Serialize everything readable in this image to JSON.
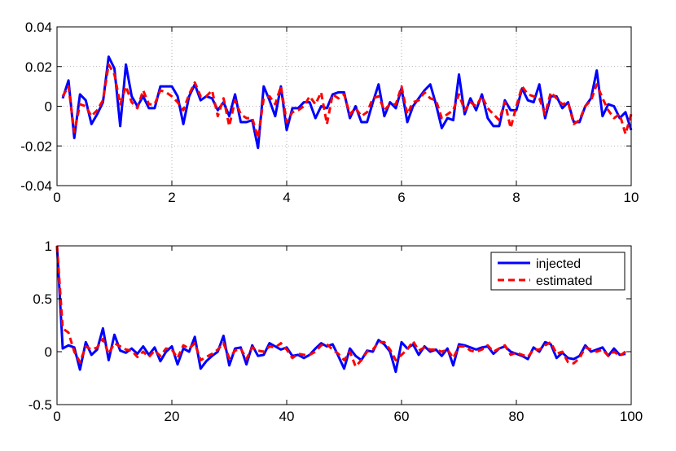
{
  "chart_data": [
    {
      "type": "line",
      "xlim": [
        0,
        10
      ],
      "ylim": [
        -0.04,
        0.04
      ],
      "xticks": [
        "0",
        "2",
        "4",
        "6",
        "8",
        "10"
      ],
      "yticks": [
        "-0.04",
        "-0.02",
        "0",
        "0.02",
        "0.04"
      ],
      "grid": true,
      "x_start": 0.1,
      "x_step": 0.1,
      "series": [
        {
          "color": "#0000ff",
          "style": "solid",
          "values": [
            0.004,
            0.013,
            -0.016,
            0.006,
            0.003,
            -0.009,
            -0.004,
            0.002,
            0.025,
            0.019,
            -0.01,
            0.021,
            0.005,
            0.0,
            0.005,
            -0.001,
            -0.001,
            0.01,
            0.01,
            0.01,
            0.005,
            -0.009,
            0.005,
            0.011,
            0.003,
            0.005,
            0.004,
            -0.002,
            0.002,
            -0.005,
            0.006,
            -0.008,
            -0.008,
            -0.007,
            -0.021,
            0.01,
            0.003,
            -0.005,
            0.01,
            -0.012,
            -0.001,
            -0.001,
            0.002,
            0.002,
            -0.006,
            0.0,
            -0.001,
            0.006,
            0.007,
            0.007,
            -0.006,
            0.0,
            -0.008,
            -0.008,
            0.002,
            0.011,
            -0.005,
            0.002,
            -0.001,
            0.009,
            -0.008,
            0.0,
            0.004,
            0.008,
            0.011,
            0.001,
            -0.011,
            -0.006,
            -0.007,
            0.016,
            -0.004,
            0.004,
            -0.002,
            0.006,
            -0.006,
            -0.01,
            -0.01,
            0.003,
            -0.002,
            -0.002,
            0.009,
            0.003,
            0.002,
            0.011,
            -0.006,
            0.005,
            0.005,
            -0.001,
            0.002,
            -0.008,
            -0.008,
            0.0,
            0.004,
            0.018,
            -0.005,
            0.001,
            0.0,
            -0.006,
            -0.003,
            -0.012
          ]
        },
        {
          "color": "#ff0000",
          "style": "dashed",
          "values": [
            0.005,
            0.01,
            -0.013,
            0.001,
            0.0,
            -0.005,
            -0.002,
            0.003,
            0.021,
            0.016,
            0.001,
            0.01,
            0.002,
            -0.001,
            0.008,
            0.001,
            0.001,
            0.008,
            0.007,
            0.005,
            0.002,
            -0.002,
            0.006,
            0.012,
            0.005,
            0.005,
            0.008,
            -0.005,
            0.004,
            -0.01,
            0.003,
            -0.004,
            -0.006,
            -0.006,
            -0.016,
            0.004,
            0.005,
            0.001,
            0.01,
            -0.008,
            -0.003,
            -0.002,
            0.0,
            0.005,
            0.001,
            0.007,
            -0.009,
            0.006,
            0.004,
            0.006,
            -0.004,
            -0.001,
            -0.005,
            -0.003,
            0.004,
            0.005,
            -0.002,
            0.001,
            0.001,
            0.01,
            -0.004,
            0.002,
            0.003,
            0.007,
            0.004,
            0.003,
            -0.006,
            -0.004,
            -0.002,
            0.006,
            -0.002,
            0.002,
            0.0,
            0.005,
            -0.001,
            -0.004,
            -0.007,
            0.002,
            -0.011,
            0.0,
            0.01,
            0.006,
            0.005,
            0.004,
            -0.004,
            0.007,
            0.004,
            0.001,
            0.002,
            -0.009,
            -0.007,
            0.0,
            0.003,
            0.011,
            0.004,
            -0.002,
            -0.006,
            -0.004,
            -0.014,
            -0.004
          ]
        }
      ]
    },
    {
      "type": "line",
      "xlim": [
        0,
        100
      ],
      "ylim": [
        -0.5,
        1
      ],
      "xticks": [
        "0",
        "20",
        "40",
        "60",
        "80",
        "100"
      ],
      "yticks": [
        "-0.5",
        "0",
        "0.5",
        "1"
      ],
      "grid": false,
      "legend": "top-right",
      "x_start": 0,
      "x_step": 1,
      "series": [
        {
          "name": "injected",
          "color": "#0000ff",
          "style": "solid",
          "values": [
            1.0,
            0.03,
            0.06,
            0.04,
            -0.17,
            0.09,
            -0.03,
            0.02,
            0.22,
            -0.08,
            0.16,
            0.01,
            -0.01,
            0.03,
            -0.02,
            0.05,
            -0.03,
            0.04,
            -0.09,
            0.0,
            0.05,
            -0.12,
            0.03,
            0.0,
            0.14,
            -0.16,
            -0.09,
            -0.04,
            0.0,
            0.15,
            -0.13,
            0.03,
            0.04,
            -0.12,
            0.06,
            -0.04,
            -0.03,
            0.08,
            0.05,
            0.02,
            0.04,
            -0.04,
            -0.03,
            -0.06,
            -0.03,
            0.03,
            0.08,
            0.05,
            0.07,
            -0.04,
            -0.16,
            0.03,
            -0.04,
            -0.08,
            0.01,
            0.0,
            0.11,
            0.07,
            0.0,
            -0.19,
            0.09,
            0.03,
            0.07,
            -0.03,
            0.05,
            0.0,
            0.02,
            -0.04,
            0.03,
            -0.13,
            0.07,
            0.06,
            0.04,
            0.02,
            0.04,
            0.05,
            -0.02,
            0.03,
            0.05,
            0.0,
            -0.02,
            -0.04,
            -0.07,
            0.04,
            0.0,
            0.09,
            0.07,
            -0.06,
            -0.01,
            -0.06,
            -0.07,
            -0.04,
            0.06,
            0.0,
            0.02,
            0.04,
            -0.04,
            0.03,
            -0.03,
            -0.02
          ]
        },
        {
          "name": "estimated",
          "color": "#ff0000",
          "style": "dashed",
          "values": [
            1.0,
            0.22,
            0.18,
            0.0,
            -0.1,
            0.05,
            0.02,
            0.04,
            0.12,
            -0.02,
            0.08,
            0.05,
            0.02,
            0.01,
            -0.05,
            0.0,
            -0.05,
            0.01,
            -0.04,
            0.03,
            0.02,
            -0.06,
            0.06,
            0.03,
            0.08,
            -0.08,
            -0.05,
            -0.02,
            0.02,
            0.08,
            -0.06,
            0.01,
            0.03,
            -0.07,
            0.04,
            0.01,
            0.0,
            0.05,
            0.04,
            0.08,
            0.02,
            -0.06,
            -0.02,
            -0.03,
            -0.03,
            0.0,
            0.06,
            0.07,
            0.02,
            -0.02,
            -0.08,
            0.0,
            -0.14,
            -0.08,
            0.0,
            0.02,
            0.09,
            0.09,
            0.02,
            -0.08,
            -0.03,
            0.02,
            0.1,
            0.01,
            0.04,
            0.02,
            0.02,
            0.0,
            0.02,
            -0.06,
            0.05,
            0.05,
            0.01,
            0.0,
            0.02,
            0.06,
            0.0,
            0.03,
            0.06,
            -0.03,
            -0.01,
            -0.03,
            -0.05,
            0.02,
            0.02,
            0.06,
            0.09,
            -0.02,
            0.0,
            -0.1,
            -0.11,
            -0.06,
            0.04,
            0.02,
            0.0,
            0.02,
            -0.04,
            0.0,
            -0.04,
            0.0
          ]
        }
      ]
    }
  ]
}
